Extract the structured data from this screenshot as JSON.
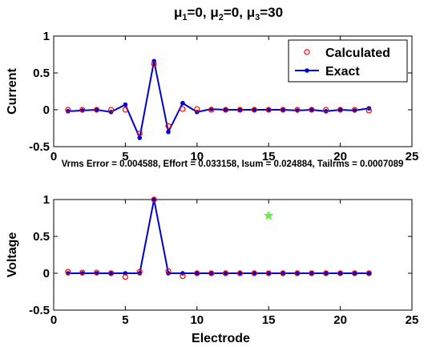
{
  "chart_data": [
    {
      "type": "line",
      "title_parts": [
        "μ",
        "1",
        "=0,  ",
        "μ",
        "2",
        "=0,  ",
        "μ",
        "3",
        "=30"
      ],
      "xlabel": "",
      "ylabel": "Current",
      "xlim": [
        0,
        25
      ],
      "ylim": [
        -0.5,
        1
      ],
      "xticks": [
        "0",
        "5",
        "10",
        "15",
        "20",
        "25"
      ],
      "yticks": [
        "-0.5",
        "0",
        "0.5",
        "1"
      ],
      "x": [
        1,
        2,
        3,
        4,
        5,
        6,
        7,
        8,
        9,
        10,
        11,
        12,
        13,
        14,
        15,
        16,
        17,
        18,
        19,
        20,
        21,
        22
      ],
      "series": [
        {
          "name": "Calculated",
          "marker": "circle",
          "color": "#ff0000",
          "values": [
            0.0,
            0.0,
            0.0,
            0.0,
            0.0,
            -0.32,
            0.62,
            -0.22,
            0.01,
            0.01,
            0.0,
            0.0,
            0.0,
            0.0,
            0.0,
            0.0,
            0.0,
            0.0,
            0.0,
            0.0,
            0.0,
            -0.01
          ]
        },
        {
          "name": "Exact",
          "marker": "dot",
          "color": "#0000cc",
          "values": [
            -0.02,
            -0.01,
            0.0,
            -0.03,
            0.07,
            -0.38,
            0.66,
            -0.3,
            0.09,
            -0.03,
            0.01,
            0.0,
            0.0,
            0.0,
            0.0,
            0.0,
            -0.01,
            0.0,
            -0.02,
            0.0,
            -0.01,
            0.02
          ]
        }
      ],
      "legend": "top-right"
    },
    {
      "type": "line",
      "title": "Vrms Error = 0.004588, Effort = 0.033158, Isum = 0.024884, Tailrms = 0.0007089",
      "xlabel": "Electrode",
      "ylabel": "Voltage",
      "xlim": [
        0,
        25
      ],
      "ylim": [
        -0.5,
        1
      ],
      "xticks": [
        "0",
        "5",
        "10",
        "15",
        "20",
        "25"
      ],
      "yticks": [
        "-0.5",
        "0",
        "0.5",
        "1"
      ],
      "x": [
        1,
        2,
        3,
        4,
        5,
        6,
        7,
        8,
        9,
        10,
        11,
        12,
        13,
        14,
        15,
        16,
        17,
        18,
        19,
        20,
        21,
        22
      ],
      "series": [
        {
          "marker": "circle",
          "color": "#ff0000",
          "values": [
            0.02,
            0.01,
            0.01,
            0.0,
            -0.05,
            0.02,
            1.0,
            0.03,
            -0.04,
            0.0,
            0.0,
            0.0,
            0.0,
            0.0,
            0.0,
            0.0,
            0.0,
            0.0,
            0.0,
            0.0,
            0.0,
            0.0
          ]
        },
        {
          "marker": "dot",
          "color": "#0000cc",
          "values": [
            0.0,
            0.0,
            0.0,
            0.0,
            0.0,
            0.0,
            1.0,
            0.0,
            0.0,
            0.0,
            0.0,
            0.0,
            0.0,
            0.0,
            0.0,
            0.0,
            0.0,
            0.0,
            0.0,
            0.0,
            0.0,
            0.0
          ]
        }
      ],
      "extra_marker": {
        "shape": "star",
        "color": "#66ee44",
        "x": 15,
        "y": 0.78
      }
    }
  ]
}
